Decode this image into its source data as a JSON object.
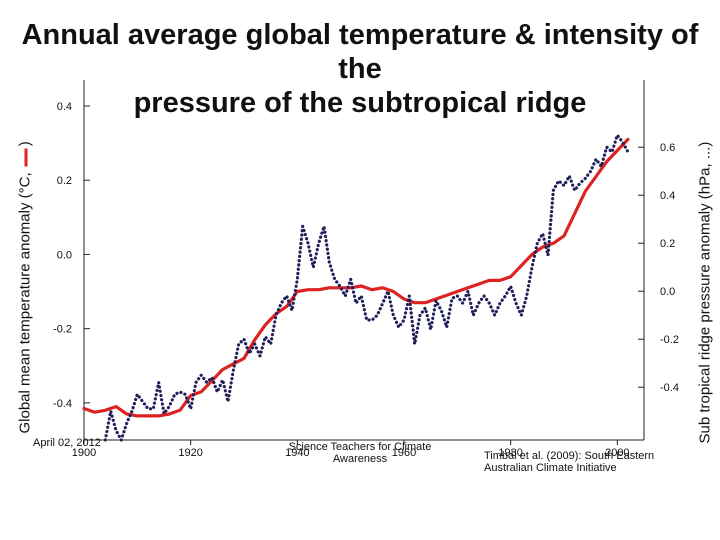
{
  "title": [
    "Annual average global temperature & intensity of the",
    "pressure of the subtropical ridge"
  ],
  "ylabel_left": "Global mean temperature anomaly (°C,",
  "ylabel_right": "Sub tropical ridge pressure anomaly (hPa, ...)",
  "footer": {
    "date": "April 02, 2012",
    "org_line1": "Science Teachers for Climate",
    "org_line2": "Awareness",
    "credit_line1": "Timbal et al. (2009): South Eastern",
    "credit_line2": "Australian Climate Initiative"
  },
  "chart_data": {
    "type": "line",
    "x_ticks": [
      "1900",
      "1920",
      "1940",
      "1960",
      "1980",
      "2000"
    ],
    "xlim": [
      1900,
      2005
    ],
    "y_left": {
      "ticks": [
        "0.4",
        "0.2",
        "0.0",
        "-0.2",
        "-0.4"
      ],
      "ylim": [
        -0.5,
        0.47
      ]
    },
    "y_right": {
      "ticks": [
        "0.6",
        "0.4",
        "0.2",
        "0.0",
        "-0.2",
        "-0.4"
      ],
      "ylim": [
        -0.62,
        0.88
      ]
    },
    "series": [
      {
        "axis": "left",
        "color": "#dd2222",
        "style": "solid",
        "x": [
          1900,
          1902,
          1904,
          1906,
          1908,
          1910,
          1912,
          1914,
          1916,
          1918,
          1920,
          1922,
          1924,
          1926,
          1928,
          1930,
          1932,
          1934,
          1936,
          1938,
          1940,
          1942,
          1944,
          1946,
          1948,
          1950,
          1952,
          1954,
          1956,
          1958,
          1960,
          1962,
          1964,
          1966,
          1968,
          1970,
          1972,
          1974,
          1976,
          1978,
          1980,
          1982,
          1984,
          1986,
          1988,
          1990,
          1992,
          1994,
          1996,
          1998,
          2000,
          2002
        ],
        "y": [
          -0.415,
          -0.425,
          -0.42,
          -0.41,
          -0.43,
          -0.435,
          -0.435,
          -0.435,
          -0.43,
          -0.42,
          -0.38,
          -0.37,
          -0.34,
          -0.31,
          -0.295,
          -0.28,
          -0.23,
          -0.19,
          -0.16,
          -0.14,
          -0.1,
          -0.095,
          -0.095,
          -0.09,
          -0.09,
          -0.09,
          -0.085,
          -0.095,
          -0.09,
          -0.1,
          -0.12,
          -0.13,
          -0.13,
          -0.12,
          -0.11,
          -0.1,
          -0.09,
          -0.08,
          -0.07,
          -0.07,
          -0.06,
          -0.03,
          0.0,
          0.02,
          0.03,
          0.05,
          0.11,
          0.17,
          0.21,
          0.25,
          0.28,
          0.31
        ]
      },
      {
        "axis": "right",
        "color": "#1f1f5a",
        "style": "dotted",
        "x": [
          1904,
          1905,
          1906,
          1907,
          1908,
          1909,
          1910,
          1911,
          1912,
          1913,
          1914,
          1915,
          1916,
          1917,
          1918,
          1919,
          1920,
          1921,
          1922,
          1923,
          1924,
          1925,
          1926,
          1927,
          1928,
          1929,
          1930,
          1931,
          1932,
          1933,
          1934,
          1935,
          1936,
          1937,
          1938,
          1939,
          1940,
          1941,
          1942,
          1943,
          1944,
          1945,
          1946,
          1947,
          1948,
          1949,
          1950,
          1951,
          1952,
          1953,
          1954,
          1955,
          1956,
          1957,
          1958,
          1959,
          1960,
          1961,
          1962,
          1963,
          1964,
          1965,
          1966,
          1967,
          1968,
          1969,
          1970,
          1971,
          1972,
          1973,
          1974,
          1975,
          1976,
          1977,
          1978,
          1979,
          1980,
          1981,
          1982,
          1983,
          1984,
          1985,
          1986,
          1987,
          1988,
          1989,
          1990,
          1991,
          1992,
          1993,
          1994,
          1995,
          1996,
          1997,
          1998,
          1999,
          2000,
          2001,
          2002
        ],
        "y": [
          -0.62,
          -0.5,
          -0.58,
          -0.62,
          -0.55,
          -0.5,
          -0.43,
          -0.46,
          -0.49,
          -0.49,
          -0.38,
          -0.51,
          -0.48,
          -0.43,
          -0.42,
          -0.43,
          -0.49,
          -0.38,
          -0.35,
          -0.38,
          -0.36,
          -0.42,
          -0.37,
          -0.46,
          -0.33,
          -0.22,
          -0.2,
          -0.26,
          -0.22,
          -0.27,
          -0.19,
          -0.22,
          -0.1,
          -0.05,
          -0.02,
          -0.08,
          0.05,
          0.27,
          0.2,
          0.1,
          0.2,
          0.27,
          0.12,
          0.05,
          0.02,
          -0.02,
          0.05,
          -0.05,
          -0.02,
          -0.12,
          -0.12,
          -0.1,
          -0.05,
          0.0,
          -0.1,
          -0.15,
          -0.12,
          -0.02,
          -0.22,
          -0.1,
          -0.07,
          -0.16,
          -0.04,
          -0.08,
          -0.15,
          -0.03,
          -0.02,
          -0.05,
          0.0,
          -0.1,
          -0.05,
          -0.02,
          -0.05,
          -0.1,
          -0.05,
          -0.02,
          0.02,
          -0.05,
          -0.1,
          -0.02,
          0.1,
          0.2,
          0.24,
          0.15,
          0.42,
          0.46,
          0.44,
          0.48,
          0.42,
          0.45,
          0.47,
          0.5,
          0.55,
          0.52,
          0.6,
          0.58,
          0.65,
          0.62,
          0.58
        ]
      }
    ]
  }
}
